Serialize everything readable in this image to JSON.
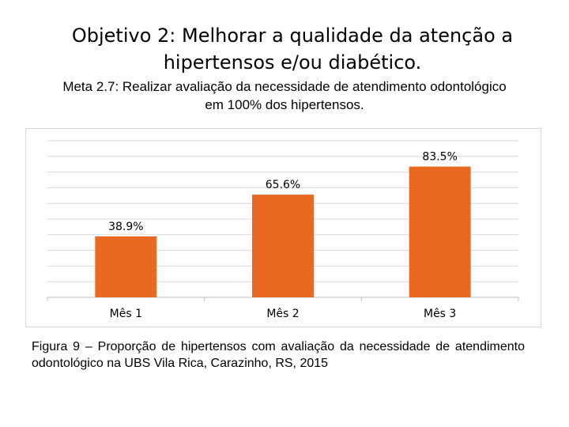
{
  "header": {
    "title_line1": "Objetivo 2: Melhorar a qualidade da atenção a",
    "title_line2": "hipertensos e/ou diabético.",
    "meta_line1": "Meta 2.7: Realizar avaliação da necessidade de atendimento odontológico",
    "meta_line2": "em 100% dos hipertensos."
  },
  "chart_data": {
    "type": "bar",
    "categories": [
      "Mês 1",
      "Mês 2",
      "Mês 3"
    ],
    "values": [
      38.9,
      65.6,
      83.5
    ],
    "data_labels": [
      "38.9%",
      "65.6%",
      "83.5%"
    ],
    "title": "",
    "xlabel": "",
    "ylabel": "",
    "ylim": [
      0,
      100
    ],
    "grid": true,
    "legend": "none",
    "bar_color": "#e8691f"
  },
  "caption": "Figura 9 – Proporção de hipertensos com avaliação da necessidade de atendimento odontológico na UBS Vila Rica, Carazinho, RS, 2015"
}
